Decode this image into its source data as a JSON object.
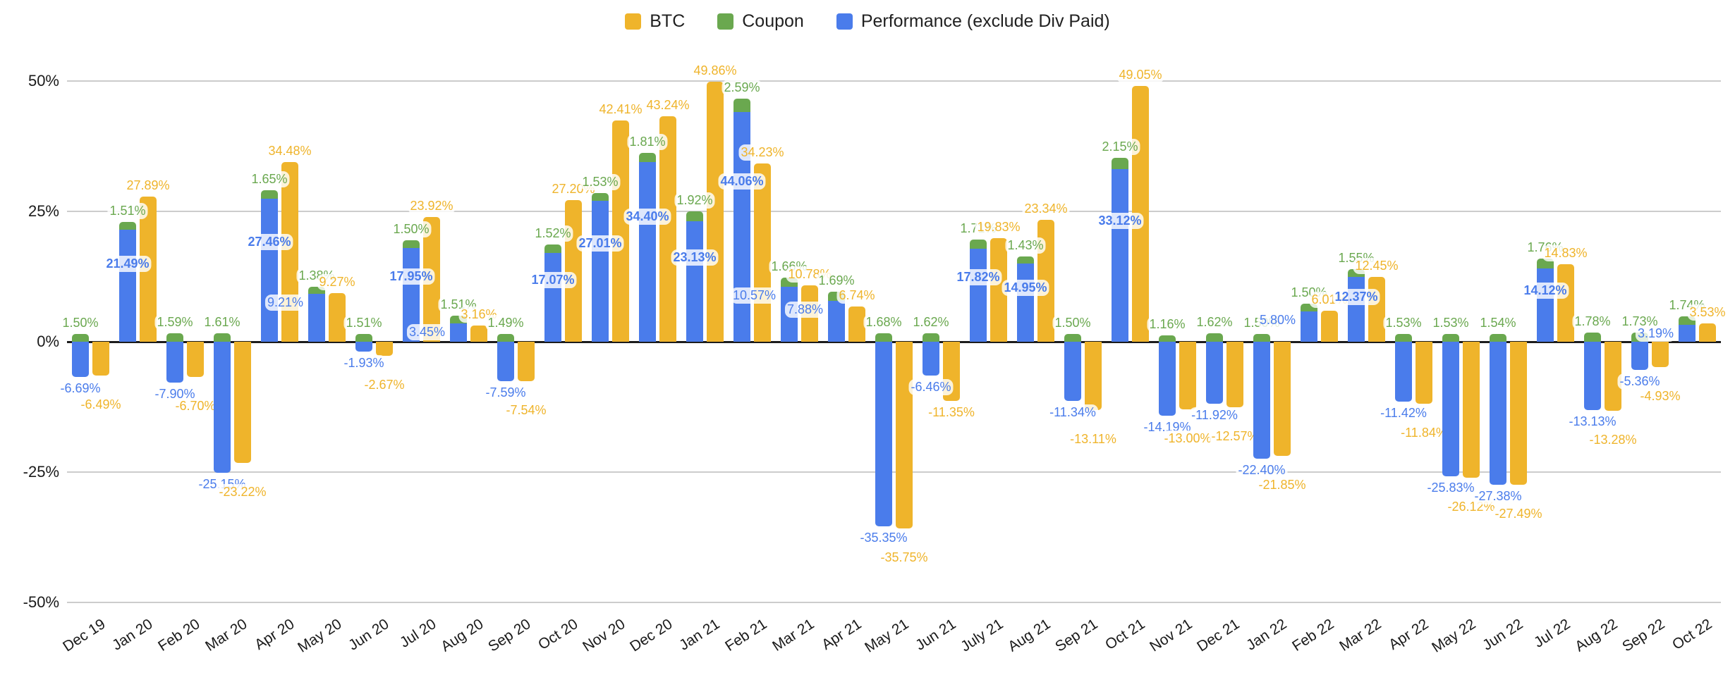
{
  "legend": {
    "items": [
      {
        "label": "BTC"
      },
      {
        "label": "Coupon"
      },
      {
        "label": "Performance (exclude Div Paid)"
      }
    ]
  },
  "chart_data": {
    "type": "bar",
    "subtype": "monthly columns: Performance+Coupon stacked in one column, BTC as separate column",
    "title": "",
    "xlabel": "",
    "ylabel": "",
    "grid": true,
    "legend_position": "top-center",
    "value_label_format": "0.00%",
    "ylim": [
      -50,
      50
    ],
    "y_axis": {
      "ticks": [
        {
          "value": 50,
          "label": "50%"
        },
        {
          "value": 25,
          "label": "25%"
        },
        {
          "value": 0,
          "label": "0%"
        },
        {
          "value": -25,
          "label": "-25%"
        },
        {
          "value": -50,
          "label": "-50%"
        }
      ]
    },
    "categories": [
      "Dec 19",
      "Jan 20",
      "Feb 20",
      "Mar 20",
      "Apr 20",
      "May 20",
      "Jun 20",
      "Jul 20",
      "Aug 20",
      "Sep 20",
      "Oct 20",
      "Nov 20",
      "Dec 20",
      "Jan 21",
      "Feb 21",
      "Mar 21",
      "Apr 21",
      "May 21",
      "Jun 21",
      "July 21",
      "Aug 21",
      "Sep 21",
      "Oct 21",
      "Nov 21",
      "Dec 21",
      "Jan 22",
      "Feb 22",
      "Mar 22",
      "Apr 22",
      "May 22",
      "Jun 22",
      "Jul 22",
      "Aug 22",
      "Sep 22",
      "Oct 22"
    ],
    "series": [
      {
        "name": "BTC",
        "color": "#EFB42B",
        "values": [
          -6.49,
          27.89,
          -6.7,
          -23.22,
          34.48,
          9.27,
          -2.67,
          23.92,
          3.16,
          -7.54,
          27.2,
          42.41,
          43.24,
          49.86,
          34.23,
          10.78,
          6.74,
          -35.75,
          -11.35,
          19.83,
          23.34,
          -13.11,
          49.05,
          -13.0,
          -12.57,
          -21.85,
          6.01,
          12.45,
          -11.84,
          -26.12,
          -27.49,
          14.83,
          -13.28,
          -4.93,
          3.53
        ]
      },
      {
        "name": "Coupon",
        "color": "#6AA84F",
        "values": [
          1.5,
          1.51,
          1.59,
          1.61,
          1.65,
          1.38,
          1.51,
          1.5,
          1.51,
          1.49,
          1.52,
          1.53,
          1.81,
          1.92,
          2.59,
          1.66,
          1.69,
          1.68,
          1.62,
          1.71,
          1.43,
          1.5,
          2.15,
          1.16,
          1.62,
          1.5,
          1.5,
          1.55,
          1.53,
          1.53,
          1.54,
          1.76,
          1.78,
          1.73,
          1.74
        ]
      },
      {
        "name": "Performance (exclude Div Paid)",
        "color": "#4A7CEB",
        "values": [
          -6.69,
          21.49,
          -7.9,
          -25.15,
          27.46,
          9.21,
          -1.93,
          17.95,
          3.45,
          -7.59,
          17.07,
          27.01,
          34.4,
          23.13,
          44.06,
          10.57,
          7.88,
          -35.35,
          -6.46,
          17.82,
          14.95,
          -11.34,
          33.12,
          -14.19,
          -11.92,
          -22.4,
          5.8,
          12.37,
          -11.42,
          -25.83,
          -27.38,
          14.12,
          -13.13,
          -5.36,
          3.19
        ]
      }
    ]
  }
}
